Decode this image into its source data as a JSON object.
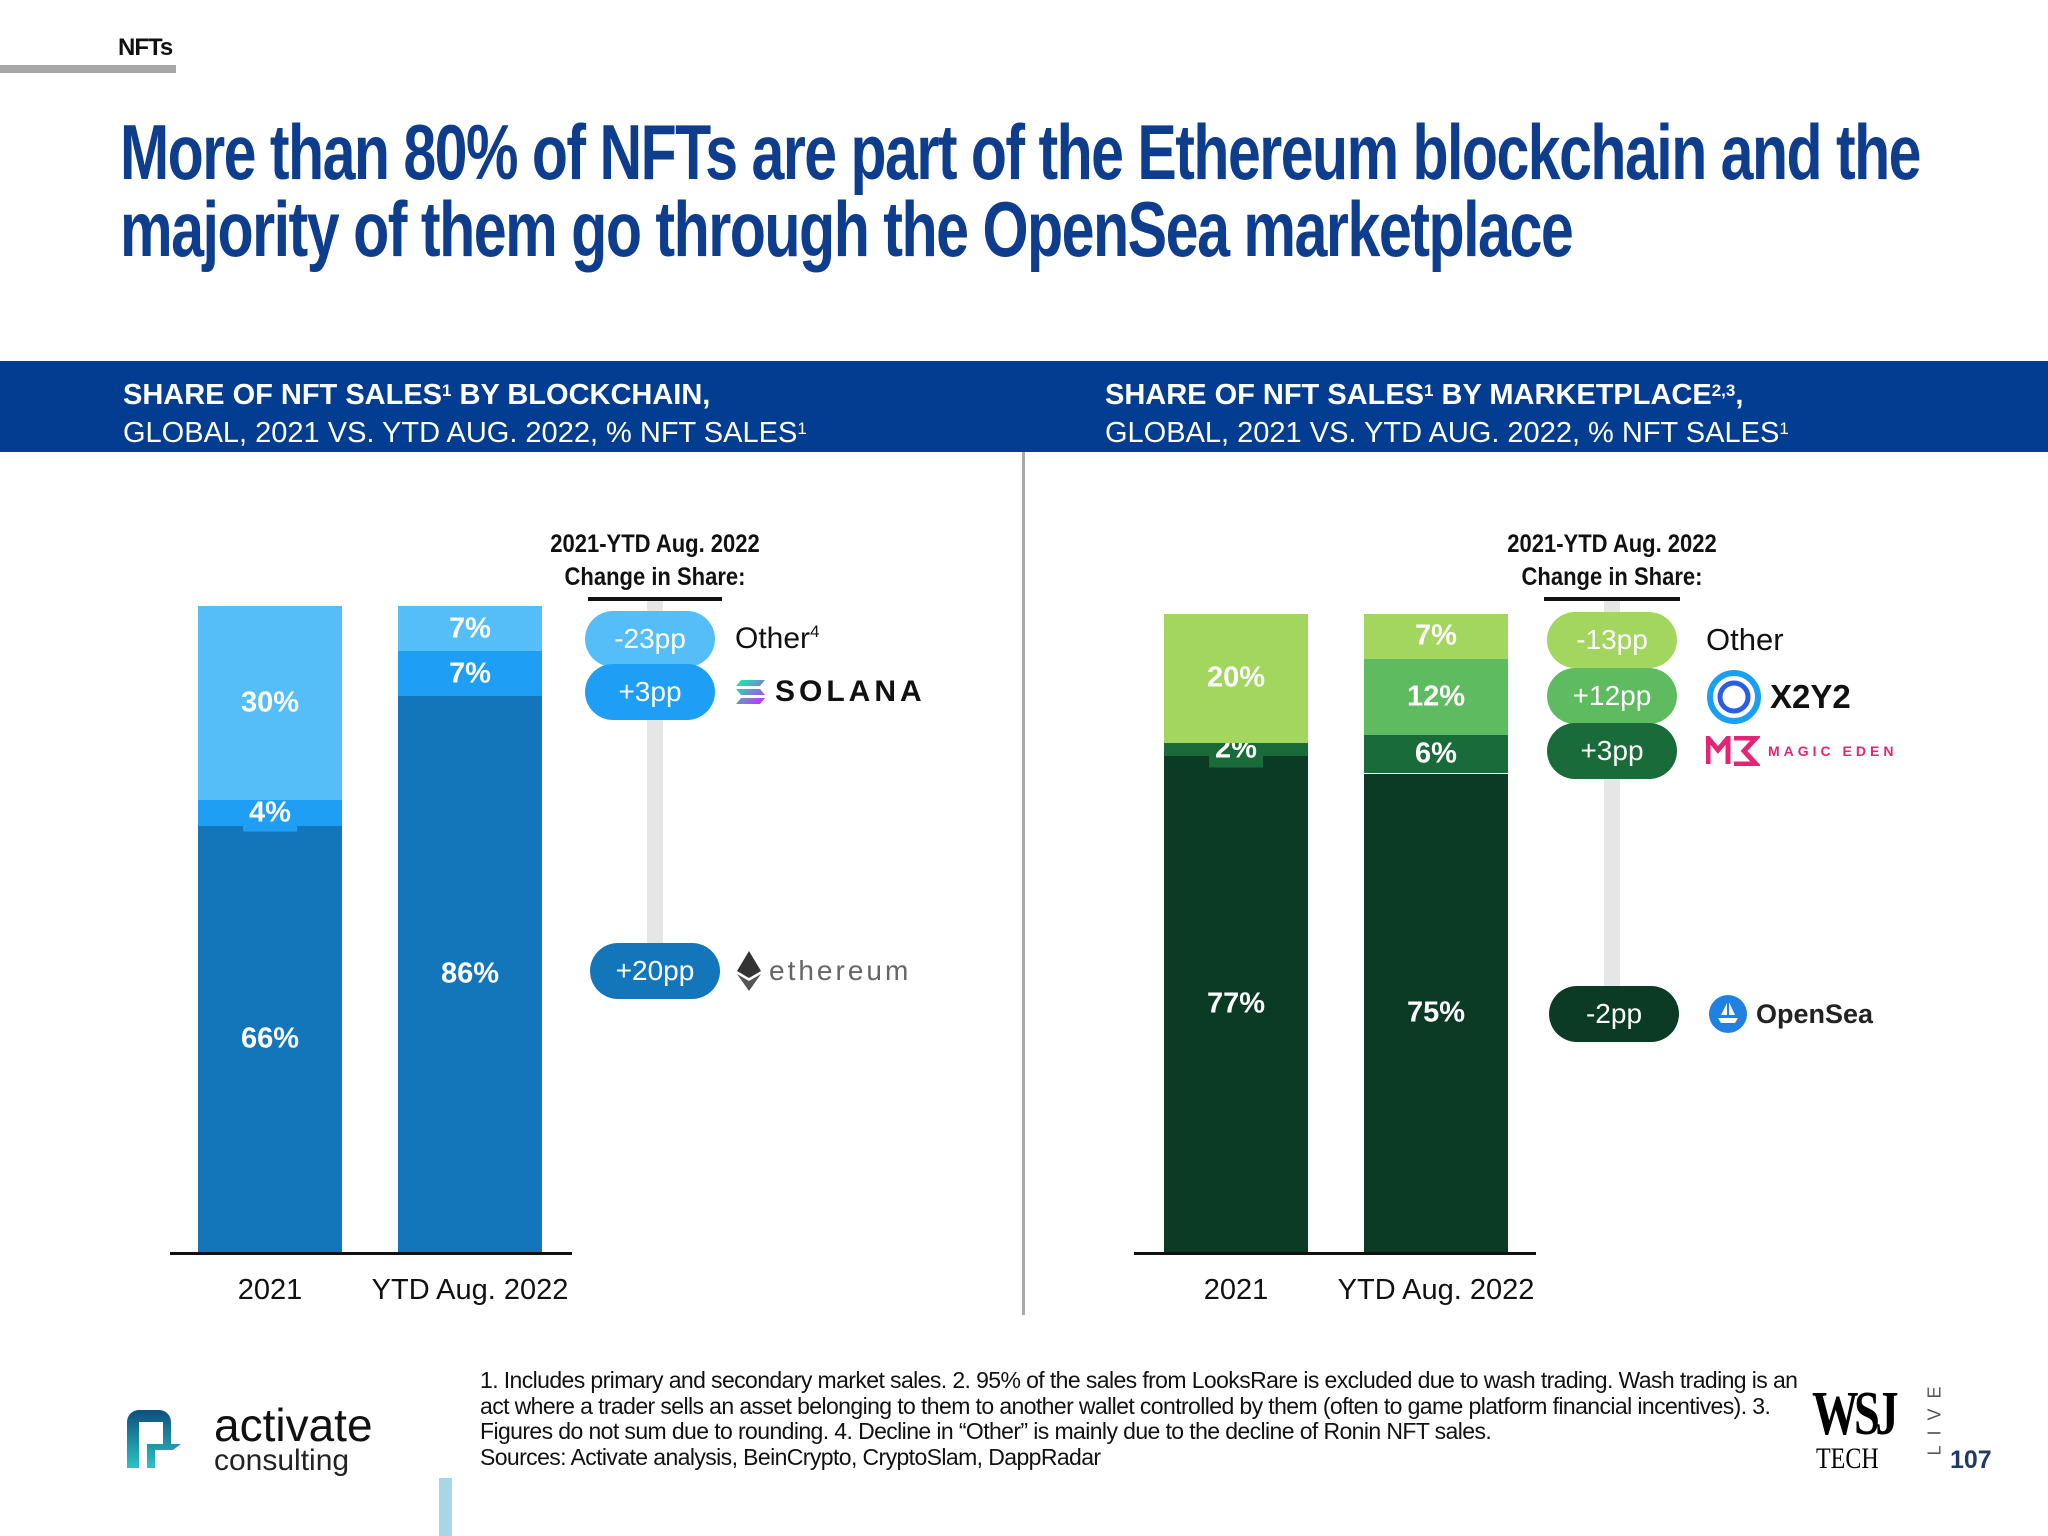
{
  "section": "NFTs",
  "title": [
    "More than 80% of NFTs are part of the Ethereum blockchain and the",
    "majority of them go through the OpenSea marketplace"
  ],
  "left_header": {
    "line1": "SHARE OF NFT SALES",
    "line1_sup": "1",
    "line1_rest": " BY BLOCKCHAIN,",
    "line2": "GLOBAL, 2021 VS. YTD AUG. 2022, % NFT SALES",
    "line2_sup": "1"
  },
  "right_header": {
    "line1": "SHARE OF NFT SALES",
    "line1_sup": "1",
    "line1_rest": " BY MARKETPLACE",
    "line1_sup2": "2,3",
    "line1_end": ",",
    "line2": "GLOBAL, 2021 VS. YTD AUG. 2022, % NFT SALES",
    "line2_sup": "1"
  },
  "change_header": [
    "2021-YTD Aug. 2022",
    "Change in Share:"
  ],
  "chart_data": [
    {
      "type": "bar",
      "stacked": true,
      "categories": [
        "2021",
        "YTD Aug. 2022"
      ],
      "series": [
        {
          "name": "ethereum",
          "values": [
            66,
            86
          ],
          "color": "#1476ba"
        },
        {
          "name": "SOLANA",
          "values": [
            4,
            7
          ],
          "color": "#1e9ef5"
        },
        {
          "name": "Other",
          "values": [
            30,
            7
          ],
          "color": "#55bdf8"
        }
      ],
      "value_labels": [
        [
          "66%",
          "4%",
          "30%"
        ],
        [
          "86%",
          "7%",
          "7%"
        ]
      ],
      "changes": [
        {
          "series": "Other",
          "label": "-23pp",
          "sup": "4"
        },
        {
          "series": "SOLANA",
          "label": "+3pp"
        },
        {
          "series": "ethereum",
          "label": "+20pp"
        }
      ]
    },
    {
      "type": "bar",
      "stacked": true,
      "categories": [
        "2021",
        "YTD Aug. 2022"
      ],
      "series": [
        {
          "name": "OpenSea",
          "values": [
            77,
            75
          ],
          "color": "#0b3b24"
        },
        {
          "name": "MAGIC EDEN",
          "values": [
            2,
            6
          ],
          "color": "#1a6b3a"
        },
        {
          "name": "X2Y2",
          "values": [
            0,
            12
          ],
          "color": "#5fbb60"
        },
        {
          "name": "Other",
          "values": [
            20,
            7
          ],
          "color": "#a2d65e"
        }
      ],
      "value_labels": [
        [
          "77%",
          "2%",
          "",
          "20%"
        ],
        [
          "75%",
          "6%",
          "12%",
          "7%"
        ]
      ],
      "changes": [
        {
          "series": "Other",
          "label": "-13pp"
        },
        {
          "series": "X2Y2",
          "label": "+12pp"
        },
        {
          "series": "MAGIC EDEN",
          "label": "+3pp"
        },
        {
          "series": "OpenSea",
          "label": "-2pp"
        }
      ]
    }
  ],
  "footnotes": [
    "1. Includes primary and secondary market sales.  2. 95% of the sales from LooksRare is excluded due to wash trading. Wash trading is an act where a trader sells an asset belonging to them to another wallet controlled by them (often to game platform financial incentives).  3. Figures do not sum due to rounding.  4. Decline in “Other” is mainly due to the decline of Ronin NFT sales.",
    "Sources: Activate analysis, BeinCrypto, CryptoSlam, DappRadar"
  ],
  "logo": {
    "name": "activate",
    "sub": "consulting"
  },
  "wsj": {
    "top": "WSJ",
    "bottom": "TECH",
    "side": "LIVE"
  },
  "page_number": "107"
}
